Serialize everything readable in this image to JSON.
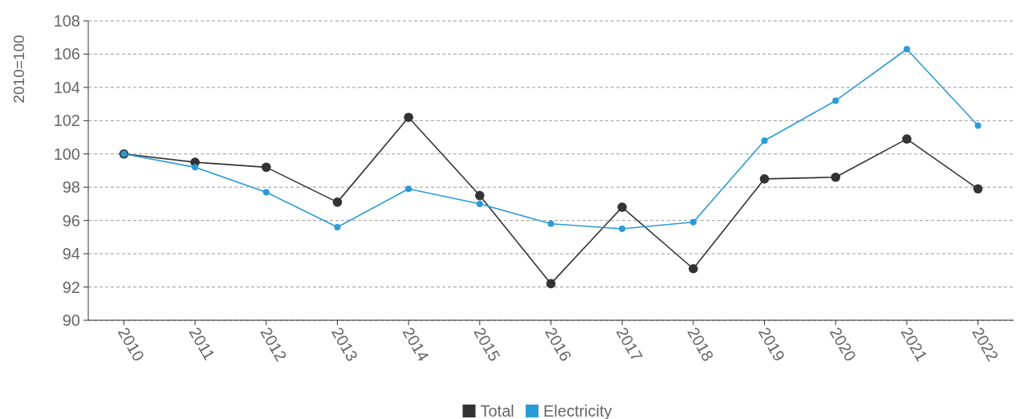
{
  "chart_data": {
    "type": "line",
    "ylabel": "2010=100",
    "categories": [
      "2010",
      "2011",
      "2012",
      "2013",
      "2014",
      "2015",
      "2016",
      "2017",
      "2018",
      "2019",
      "2020",
      "2021",
      "2022"
    ],
    "series": [
      {
        "name": "Total",
        "color": "#333333",
        "values": [
          100,
          99.5,
          99.2,
          97.1,
          102.2,
          97.5,
          92.2,
          96.8,
          93.1,
          98.5,
          98.6,
          100.9,
          97.9
        ]
      },
      {
        "name": "Electricity",
        "color": "#2b9bd6",
        "values": [
          100,
          99.2,
          97.7,
          95.6,
          97.9,
          97.0,
          95.8,
          95.5,
          95.9,
          100.8,
          103.2,
          106.3,
          101.7
        ]
      }
    ],
    "ylim": [
      90,
      108
    ],
    "yticks": [
      90,
      92,
      94,
      96,
      98,
      100,
      102,
      104,
      106,
      108
    ],
    "grid": "y",
    "legend": "bottom",
    "marker": "circle",
    "line_style": "solid"
  }
}
